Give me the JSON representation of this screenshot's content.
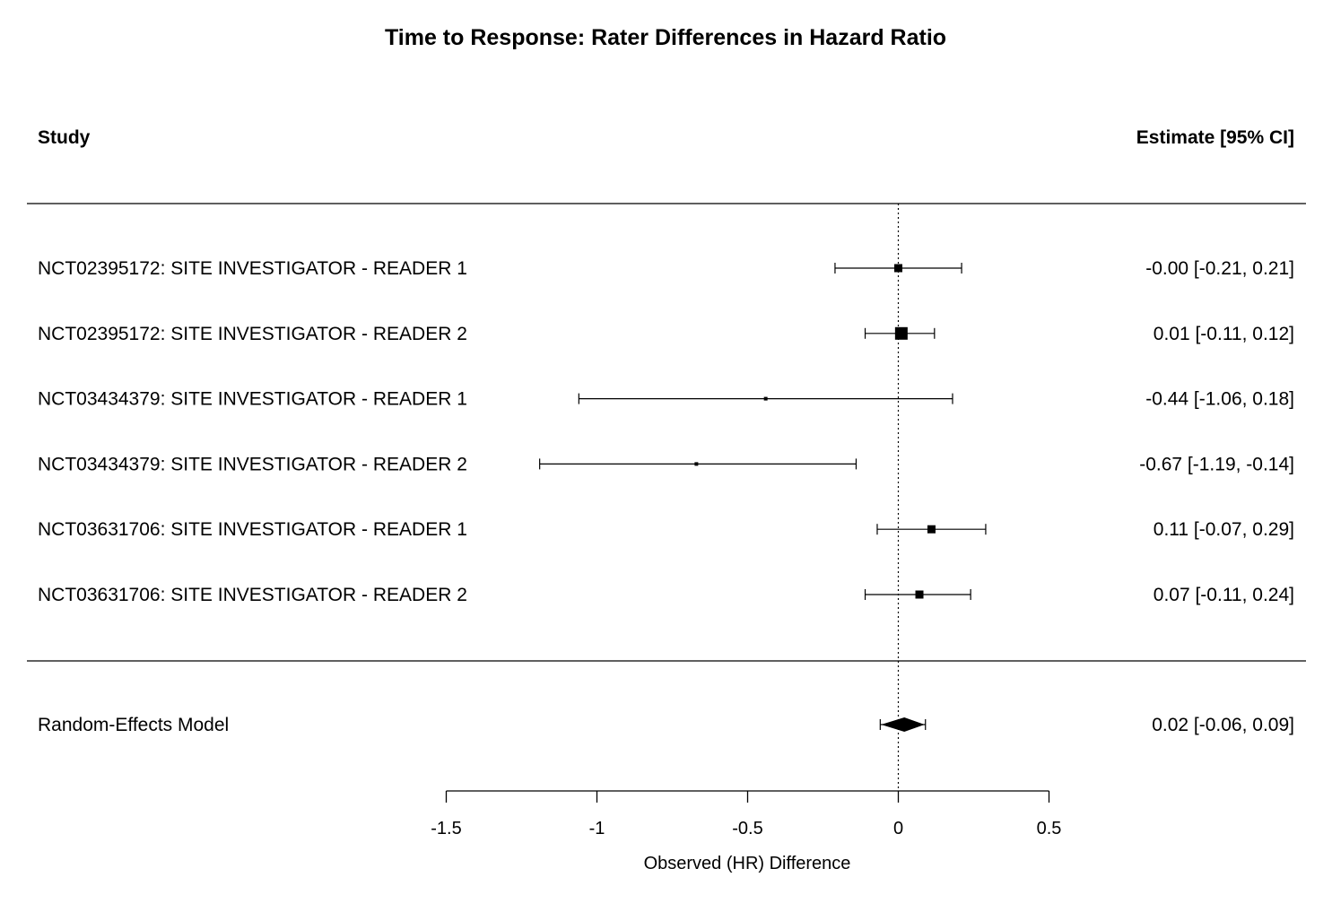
{
  "chart_data": {
    "type": "forest",
    "title": "Time to Response: Rater Differences in Hazard Ratio",
    "column_headers": {
      "left": "Study",
      "right": "Estimate [95% CI]"
    },
    "studies": [
      {
        "label": "NCT02395172: SITE INVESTIGATOR - READER 1",
        "estimate": -0.0,
        "lower": -0.21,
        "upper": 0.21,
        "text": "-0.00 [-0.21,  0.21]",
        "weight": "medium"
      },
      {
        "label": "NCT02395172: SITE INVESTIGATOR - READER 2",
        "estimate": 0.01,
        "lower": -0.11,
        "upper": 0.12,
        "text": "0.01 [-0.11,  0.12]",
        "weight": "large"
      },
      {
        "label": "NCT03434379: SITE INVESTIGATOR - READER 1",
        "estimate": -0.44,
        "lower": -1.06,
        "upper": 0.18,
        "text": "-0.44 [-1.06,  0.18]",
        "weight": "small"
      },
      {
        "label": "NCT03434379: SITE INVESTIGATOR - READER 2",
        "estimate": -0.67,
        "lower": -1.19,
        "upper": -0.14,
        "text": "-0.67 [-1.19, -0.14]",
        "weight": "small"
      },
      {
        "label": "NCT03631706: SITE INVESTIGATOR - READER 1",
        "estimate": 0.11,
        "lower": -0.07,
        "upper": 0.29,
        "text": "0.11 [-0.07,  0.29]",
        "weight": "medium"
      },
      {
        "label": "NCT03631706: SITE INVESTIGATOR - READER 2",
        "estimate": 0.07,
        "lower": -0.11,
        "upper": 0.24,
        "text": "0.07 [-0.11,  0.24]",
        "weight": "medium"
      }
    ],
    "summary": {
      "label": "Random-Effects Model",
      "estimate": 0.02,
      "lower": -0.06,
      "upper": 0.09,
      "text": "0.02 [-0.06,  0.09]"
    },
    "reference_line": 0,
    "x_axis": {
      "label": "Observed (HR) Difference",
      "ticks": [
        -1.5,
        -1,
        -0.5,
        0,
        0.5
      ],
      "tick_labels": [
        "-1.5",
        "-1",
        "-0.5",
        "0",
        "0.5"
      ],
      "range": [
        -1.5,
        0.5
      ]
    },
    "grid": false,
    "legend": "none"
  }
}
